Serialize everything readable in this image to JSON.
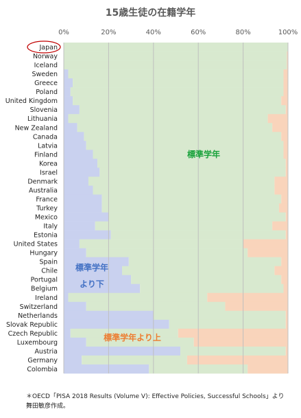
{
  "title": "15歳生徒の在籍学年",
  "note_line1": "＊OECD「PISA 2018 Results (Volume V): Effective Policies, Successful Schools」より",
  "note_line2": "舞田敏彦作成。",
  "annotations": {
    "standard": "標準学年",
    "below_line1": "標準学年",
    "below_line2": "より下",
    "above": "標準学年より上"
  },
  "colors": {
    "below": "#c9d1ef",
    "standard": "#d8e9cf",
    "above": "#f9d4bb",
    "standard_text": "#1aa23c",
    "below_text": "#4472c4",
    "above_text": "#ed7d31",
    "highlight_circle": "#c00000",
    "grid": "#bfbfbf"
  },
  "chart_data": {
    "type": "bar",
    "stacked": true,
    "orientation": "horizontal",
    "title": "15歳生徒の在籍学年",
    "xlim": [
      0,
      100
    ],
    "x_ticks": [
      "0%",
      "20%",
      "40%",
      "60%",
      "80%",
      "100%"
    ],
    "grid": true,
    "highlight": "Japan",
    "categories": [
      "Japan",
      "Norway",
      "Iceland",
      "Sweden",
      "Greece",
      "Poland",
      "United Kingdom",
      "Slovenia",
      "Lithuania",
      "New Zealand",
      "Canada",
      "Latvia",
      "Finland",
      "Korea",
      "Israel",
      "Denmark",
      "Australia",
      "France",
      "Turkey",
      "Mexico",
      "Italy",
      "Estonia",
      "United States",
      "Hungary",
      "Spain",
      "Chile",
      "Portugal",
      "Belgium",
      "Ireland",
      "Switzerland",
      "Netherlands",
      "Slovak Republic",
      "Czech Republic",
      "Luxembourg",
      "Austria",
      "Germany",
      "Colombia"
    ],
    "series": [
      {
        "values": [
          0,
          0,
          0,
          2,
          4,
          3,
          4,
          7,
          2,
          6,
          9,
          10,
          13,
          15,
          16,
          11,
          13,
          17,
          17,
          20,
          14,
          21,
          7,
          10,
          29,
          26,
          30,
          34,
          2,
          10,
          40,
          47,
          3,
          10,
          52,
          8,
          38
        ]
      },
      {
        "values": [
          100,
          99.5,
          99.5,
          96,
          94,
          95,
          93,
          92,
          89,
          87,
          88,
          88,
          85,
          84,
          83,
          83,
          81,
          80,
          79,
          79,
          79,
          78,
          73,
          72,
          68,
          68,
          67,
          64,
          62,
          62,
          59,
          52,
          48,
          48,
          47,
          47,
          44
        ]
      },
      {
        "values": [
          0,
          0.5,
          0.5,
          2,
          2,
          2,
          3,
          1,
          9,
          7,
          3,
          2,
          2,
          1,
          1,
          6,
          6,
          3,
          4,
          1,
          7,
          1,
          20,
          18,
          3,
          6,
          3,
          2,
          36,
          28,
          1,
          1,
          49,
          42,
          1,
          45,
          18
        ]
      }
    ]
  }
}
